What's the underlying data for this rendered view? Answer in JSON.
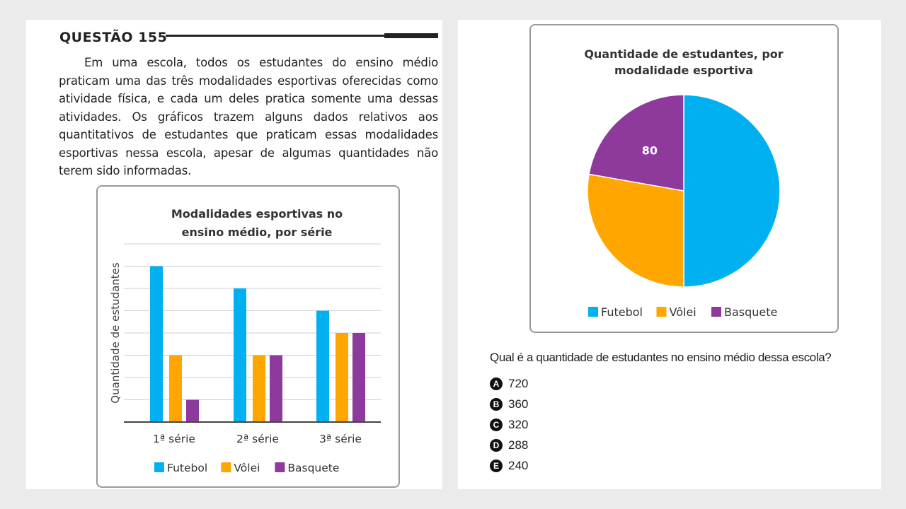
{
  "question": {
    "title": "QUESTÃO 155",
    "stem": "Em uma escola, todos os estudantes do ensino médio praticam uma das três modalidades esportivas oferecidas como atividade física, e cada um deles pratica somente uma dessas atividades. Os gráficos trazem alguns dados relativos aos quantitativos de estudantes que praticam essas modalidades esportivas nessa escola, apesar de algumas quantidades não terem sido informadas.",
    "prompt": "Qual é a quantidade de estudantes no ensino médio dessa escola?",
    "options": [
      {
        "letter": "A",
        "text": "720"
      },
      {
        "letter": "B",
        "text": "360"
      },
      {
        "letter": "C",
        "text": "320"
      },
      {
        "letter": "D",
        "text": "288"
      },
      {
        "letter": "E",
        "text": "240"
      }
    ]
  },
  "colors": {
    "Futebol": "#00b0f0",
    "Vôlei": "#ffa600",
    "Basquete": "#8e3a9c"
  },
  "chart_data": [
    {
      "type": "bar",
      "title": "Modalidades esportivas no ensino médio, por série",
      "title_lines": [
        "Modalidades esportivas no",
        "ensino médio, por série"
      ],
      "ylabel": "Quantidade de estudantes",
      "xlabel": "",
      "categories": [
        "1ª série",
        "2ª série",
        "3ª série"
      ],
      "series": [
        {
          "name": "Futebol",
          "values": [
            7,
            6,
            5
          ]
        },
        {
          "name": "Vôlei",
          "values": [
            3,
            3,
            4
          ]
        },
        {
          "name": "Basquete",
          "values": [
            1,
            3,
            4
          ]
        }
      ],
      "ylim": [
        0,
        8
      ],
      "y_units": "gridlines (no tick labels shown)",
      "grid": true,
      "legend": "bottom"
    },
    {
      "type": "pie",
      "title": "Quantidade de estudantes, por modalidade esportiva",
      "title_lines": [
        "Quantidade de estudantes, por",
        "modalidade esportiva"
      ],
      "labels": [
        "Futebol",
        "Vôlei",
        "Basquete"
      ],
      "values": [
        180,
        100,
        80
      ],
      "data_labels": {
        "Basquete": "80"
      },
      "legend": "bottom"
    }
  ]
}
